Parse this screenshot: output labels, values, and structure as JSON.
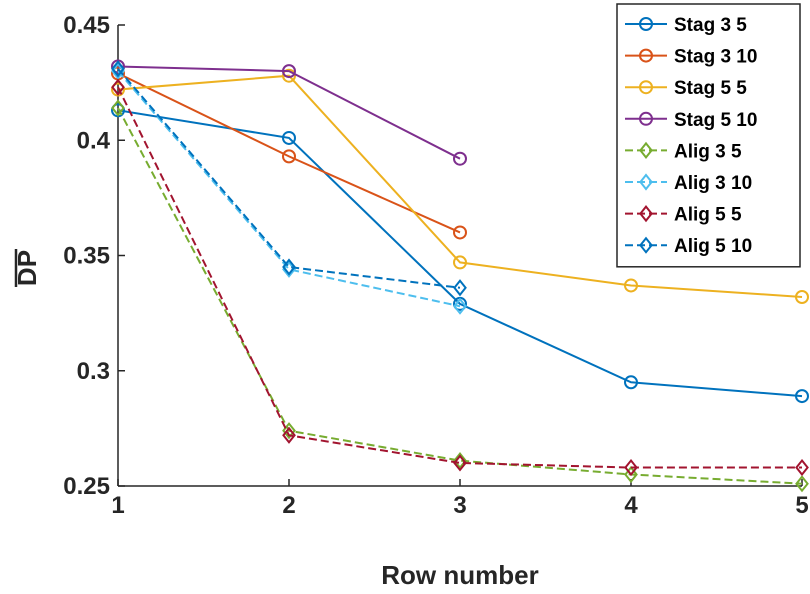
{
  "chart_data": {
    "type": "line",
    "title": "",
    "xlabel": "Row number",
    "ylabel": "DP",
    "ylabel_overline": true,
    "xlim": [
      1,
      5
    ],
    "ylim": [
      0.25,
      0.45
    ],
    "xticks": [
      1,
      2,
      3,
      4,
      5
    ],
    "xtick_labels": [
      "1",
      "2",
      "3",
      "4",
      "5"
    ],
    "yticks": [
      0.25,
      0.3,
      0.35,
      0.4,
      0.45
    ],
    "ytick_labels": [
      "0.25",
      "0.3",
      "0.35",
      "0.4",
      "0.45"
    ],
    "grid": false,
    "legend_position": "top-right",
    "series": [
      {
        "name": "Stag 3 5",
        "color": "#0072BD",
        "style": "solid",
        "marker": "circle",
        "x": [
          1,
          2,
          3,
          4,
          5
        ],
        "y": [
          0.413,
          0.401,
          0.329,
          0.295,
          0.289
        ]
      },
      {
        "name": "Stag 3 10",
        "color": "#D95319",
        "style": "solid",
        "marker": "circle",
        "x": [
          1,
          2,
          3
        ],
        "y": [
          0.429,
          0.393,
          0.36
        ]
      },
      {
        "name": "Stag 5 5",
        "color": "#EDB120",
        "style": "solid",
        "marker": "circle",
        "x": [
          1,
          2,
          3,
          4,
          5
        ],
        "y": [
          0.422,
          0.428,
          0.347,
          0.337,
          0.332
        ]
      },
      {
        "name": "Stag 5 10",
        "color": "#7E2F8E",
        "style": "solid",
        "marker": "circle",
        "x": [
          1,
          2,
          3
        ],
        "y": [
          0.432,
          0.43,
          0.392
        ]
      },
      {
        "name": "Alig 3 5",
        "color": "#77AC30",
        "style": "dashed",
        "marker": "diamond",
        "x": [
          1,
          2,
          3,
          4,
          5
        ],
        "y": [
          0.414,
          0.274,
          0.261,
          0.255,
          0.251
        ]
      },
      {
        "name": "Alig 3 10",
        "color": "#4DBEEE",
        "style": "dashed",
        "marker": "diamond",
        "x": [
          1,
          2,
          3
        ],
        "y": [
          0.43,
          0.344,
          0.328
        ]
      },
      {
        "name": "Alig 5 5",
        "color": "#A2142F",
        "style": "dashed",
        "marker": "diamond",
        "x": [
          1,
          2,
          3,
          4,
          5
        ],
        "y": [
          0.423,
          0.272,
          0.26,
          0.258,
          0.258
        ]
      },
      {
        "name": "Alig 5 10",
        "color": "#0072BD",
        "style": "dashed",
        "marker": "diamond",
        "x": [
          1,
          2,
          3
        ],
        "y": [
          0.431,
          0.345,
          0.336
        ]
      }
    ]
  }
}
